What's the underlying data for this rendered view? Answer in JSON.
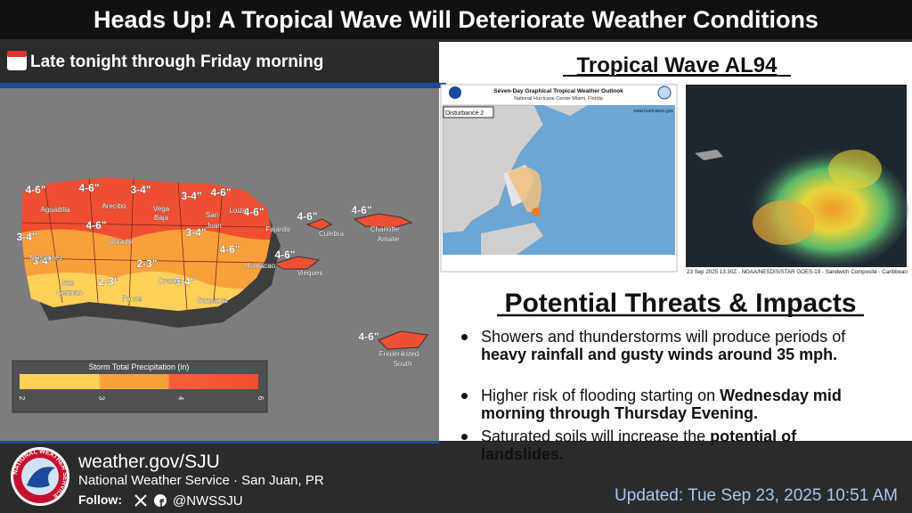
{
  "header": {
    "title": "Heads Up! A Tropical Wave Will Deteriorate Weather Conditions",
    "subtitle": "Late tonight through Friday morning"
  },
  "map": {
    "rain_labels": [
      "4-6\"",
      "4-6\"",
      "3-4\"",
      "3-4\"",
      "4-6\"",
      "4-6\"",
      "4-6\"",
      "3-4\"",
      "3-4\"",
      "4-6\"",
      "3-4\"",
      "2-3\"",
      "2-3\"",
      "3-4\"",
      "4-6\"",
      "4-6\"",
      "4-6\"",
      "4-6\""
    ],
    "places": [
      "Aguadilla",
      "Arecibo",
      "Vega",
      "Baja",
      "San",
      "Juan",
      "Loiza",
      "Fajardo",
      "Culebra",
      "Charlotte",
      "Amalie",
      "Utuado",
      "Mayaguez",
      "Humacao",
      "Vieques",
      "San",
      "German",
      "Ponce",
      "Coamo",
      "Guayama",
      "Frederiksted",
      "South"
    ],
    "legend": {
      "title": "Storm Total Precipitation (in)",
      "ticks": [
        "2",
        "3",
        "4",
        "6"
      ]
    }
  },
  "panel": {
    "title": "Tropical Wave AL94",
    "outlook": {
      "title": "Seven-Day Graphical Tropical Weather Outlook",
      "subtitle": "National Hurricane Center  Miami, Florida",
      "disturbance": "Disturbance 2",
      "url": "www.hurricanes.gov"
    },
    "satellite_caption": "23 Sep 2025 13:30Z - NOAA/NESDIS/STAR GOES-19 - Sandwich Composite - Caribbean",
    "threats_title": "Potential Threats & Impacts",
    "bullets": [
      [
        {
          "text": "Showers and thunderstorms will produce periods of ",
          "bold": false
        },
        {
          "text": "heavy rainfall and gusty winds around 35 mph.",
          "bold": true
        }
      ],
      [
        {
          "text": "Higher risk of flooding starting on ",
          "bold": false
        },
        {
          "text": "Wednesday mid morning through Thursday Evening.",
          "bold": true
        }
      ],
      [
        {
          "text": "Saturated soils will increase the ",
          "bold": false
        },
        {
          "text": "potential of landslides.",
          "bold": true
        }
      ]
    ]
  },
  "footer": {
    "logo_text": "NATIONAL WEATHER SERVICE",
    "url": "weather.gov/SJU",
    "office": "National Weather Service · San Juan, PR",
    "follow": "Follow:",
    "handle": "@NWSSJU",
    "updated": "Updated: Tue Sep 23, 2025 10:51 AM"
  }
}
